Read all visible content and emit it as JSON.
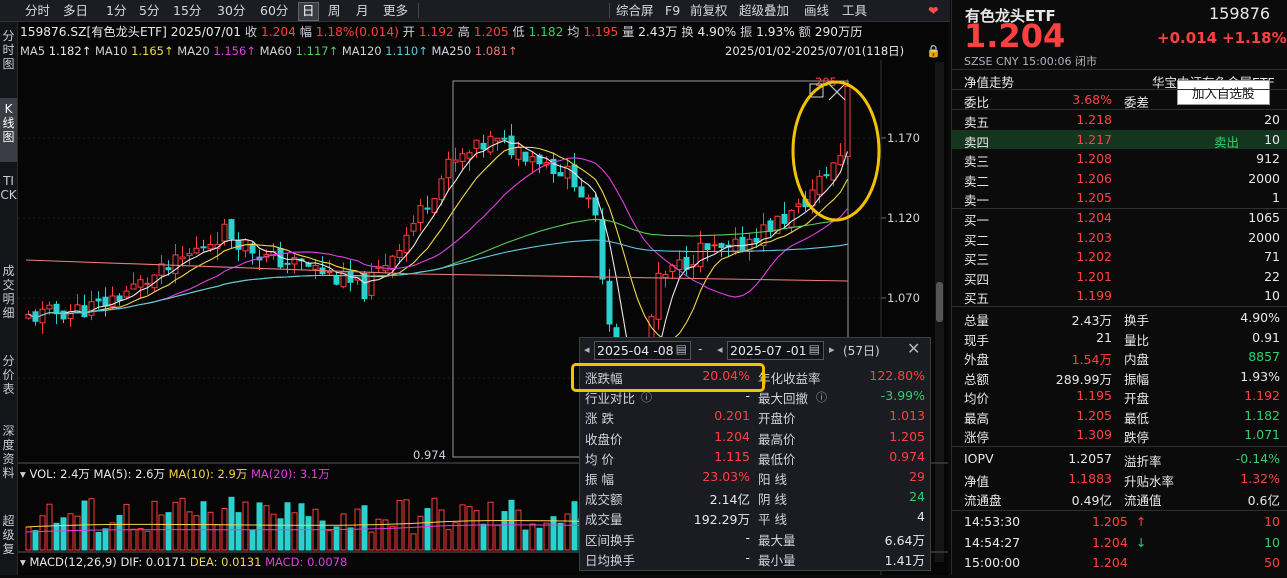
{
  "toolbar": {
    "items": [
      "分时",
      "多日",
      "1分",
      "5分",
      "15分",
      "30分",
      "60分",
      "日",
      "周",
      "月",
      "更多"
    ],
    "active": "日",
    "right_items": [
      "综合屏",
      "F9",
      "前复权",
      "超级叠加",
      "画线",
      "工具"
    ],
    "heart_icon": "heart-icon"
  },
  "vtabs": [
    "分时图",
    "K线图",
    "TICK",
    "成交明细",
    "分价表",
    "深度资料",
    "超级复"
  ],
  "vtab_active": "K线图",
  "quote_bar": {
    "code": "159876.SZ[有色龙头ETF]",
    "date": "2025/07/01",
    "close_label": "收",
    "close": "1.204",
    "chg_label": "幅",
    "chg": "1.18%(0.014)",
    "open_label": "开",
    "open": "1.192",
    "high_label": "高",
    "high": "1.205",
    "low_label": "低",
    "low": "1.182",
    "avg_label": "均",
    "avg": "1.195",
    "vol_label": "量",
    "vol": "2.43万",
    "turn_label": "换",
    "turn": "4.90%",
    "amp_label": "振",
    "amp": "1.93%",
    "amt_label": "额",
    "amt": "290万",
    "end_char": "历"
  },
  "ma_bar": [
    {
      "label": "MA5",
      "value": "1.182↑",
      "color": "#e8e8e8"
    },
    {
      "label": "MA10",
      "value": "1.165↑",
      "color": "#f2d84a"
    },
    {
      "label": "MA20",
      "value": "1.156↑",
      "color": "#e040e0"
    },
    {
      "label": "MA60",
      "value": "1.117↑",
      "color": "#59c959"
    },
    {
      "label": "MA120",
      "value": "1.110↑",
      "color": "#62c8e0"
    },
    {
      "label": "MA250",
      "value": "1.081↑",
      "color": "#e87a7a"
    }
  ],
  "range_label": "2025/01/02-2025/07/01(118日)",
  "price_axis": [
    "1.170",
    "1.120",
    "1.070"
  ],
  "peak_label": "205",
  "low_label": "0.974",
  "vol_bar": {
    "vol": "VOL: 2.4万",
    "ma5": "MA(5): 2.6万",
    "ma10": "MA(10): 2.9万",
    "ma20": "MA(20): 3.1万"
  },
  "macd_bar": {
    "macd": "MACD(12,26,9)",
    "dif": "DIF: 0.0171",
    "dea": "DEA: 0.0131",
    "val": "MACD: 0.0078"
  },
  "panel": {
    "start": "2025-04 -08",
    "dash": "-",
    "end": "2025-07 -01",
    "days": "(57日)",
    "left": [
      {
        "label": "涨跌幅",
        "value": "20.04%",
        "cls": "up"
      },
      {
        "label": "行业对比",
        "value": "-",
        "cls": "wt"
      },
      {
        "label": "涨 跌",
        "value": "0.201",
        "cls": "up"
      },
      {
        "label": "收盘价",
        "value": "1.204",
        "cls": "up"
      },
      {
        "label": "均 价",
        "value": "1.115",
        "cls": "up"
      },
      {
        "label": "振 幅",
        "value": "23.03%",
        "cls": "up"
      },
      {
        "label": "成交额",
        "value": "2.14亿",
        "cls": "wt"
      },
      {
        "label": "成交量",
        "value": "192.29万",
        "cls": "wt"
      },
      {
        "label": "区间换手",
        "value": "-",
        "cls": "wt"
      },
      {
        "label": "日均换手",
        "value": "-",
        "cls": "wt"
      }
    ],
    "right": [
      {
        "label": "年化收益率",
        "value": "122.80%",
        "cls": "up"
      },
      {
        "label": "最大回撤",
        "value": "-3.99%",
        "cls": "dn"
      },
      {
        "label": "开盘价",
        "value": "1.013",
        "cls": "up"
      },
      {
        "label": "最高价",
        "value": "1.205",
        "cls": "up"
      },
      {
        "label": "最低价",
        "value": "0.974",
        "cls": "up"
      },
      {
        "label": "阳 线",
        "value": "29",
        "cls": "up"
      },
      {
        "label": "阴 线",
        "value": "24",
        "cls": "dn"
      },
      {
        "label": "平 线",
        "value": "4",
        "cls": "wt"
      },
      {
        "label": "最大量",
        "value": "6.64万",
        "cls": "wt"
      },
      {
        "label": "最小量",
        "value": "1.41万",
        "cls": "wt"
      }
    ]
  },
  "right": {
    "name": "有色龙头ETF",
    "code": "159876",
    "price": "1.204",
    "chg": "+0.014",
    "pct": "+1.18%",
    "market": "SZSE",
    "currency": "CNY",
    "time": "15:00:06",
    "status": "闭市",
    "nav_trend": "净值走势",
    "fund": "华宝中证有色金属ETF",
    "add_watch": "加入自选股",
    "ratio_label": "委比",
    "ratio": "3.68%",
    "diff_label": "委差",
    "asks": [
      {
        "label": "卖五",
        "price": "1.218",
        "vol": "20"
      },
      {
        "label": "卖四",
        "price": "1.217",
        "vol": "10",
        "tag": "卖出"
      },
      {
        "label": "卖三",
        "price": "1.208",
        "vol": "912"
      },
      {
        "label": "卖二",
        "price": "1.206",
        "vol": "2000"
      },
      {
        "label": "卖一",
        "price": "1.205",
        "vol": "1"
      }
    ],
    "bids": [
      {
        "label": "买一",
        "price": "1.204",
        "vol": "1065"
      },
      {
        "label": "买二",
        "price": "1.203",
        "vol": "2000"
      },
      {
        "label": "买三",
        "price": "1.202",
        "vol": "71"
      },
      {
        "label": "买四",
        "price": "1.201",
        "vol": "22"
      },
      {
        "label": "买五",
        "price": "1.199",
        "vol": "10"
      }
    ],
    "stats": [
      {
        "l1": "总量",
        "v1": "2.43万",
        "c1": "wt",
        "l2": "换手",
        "v2": "4.90%",
        "c2": "wt"
      },
      {
        "l1": "现手",
        "v1": "21",
        "c1": "wt",
        "l2": "量比",
        "v2": "0.91",
        "c2": "wt"
      },
      {
        "l1": "外盘",
        "v1": "1.54万",
        "c1": "up",
        "l2": "内盘",
        "v2": "8857",
        "c2": "dn"
      },
      {
        "l1": "总额",
        "v1": "289.99万",
        "c1": "wt",
        "l2": "振幅",
        "v2": "1.93%",
        "c2": "wt"
      },
      {
        "l1": "均价",
        "v1": "1.195",
        "c1": "up",
        "l2": "开盘",
        "v2": "1.192",
        "c2": "up"
      },
      {
        "l1": "最高",
        "v1": "1.205",
        "c1": "up",
        "l2": "最低",
        "v2": "1.182",
        "c2": "dn"
      },
      {
        "l1": "涨停",
        "v1": "1.309",
        "c1": "up",
        "l2": "跌停",
        "v2": "1.071",
        "c2": "dn"
      }
    ],
    "iopv": [
      {
        "l1": "IOPV",
        "v1": "1.2057",
        "c1": "wt",
        "l2": "溢折率",
        "v2": "-0.14%",
        "c2": "dn"
      },
      {
        "l1": "净值",
        "v1": "1.1883",
        "c1": "up",
        "l2": "升贴水率",
        "v2": "1.32%",
        "c2": "up"
      },
      {
        "l1": "流通盘",
        "v1": "0.49亿",
        "c1": "wt",
        "l2": "流通值",
        "v2": "0.6亿",
        "c2": "wt"
      }
    ],
    "ticks": [
      {
        "time": "14:53:30",
        "price": "1.205",
        "arrow": "↑",
        "vol": "10",
        "cls": "up"
      },
      {
        "time": "14:54:27",
        "price": "1.204",
        "arrow": "↓",
        "vol": "10",
        "cls": "dn"
      },
      {
        "time": "15:00:00",
        "price": "1.204",
        "arrow": "",
        "vol": "50",
        "cls": "up"
      }
    ]
  }
}
